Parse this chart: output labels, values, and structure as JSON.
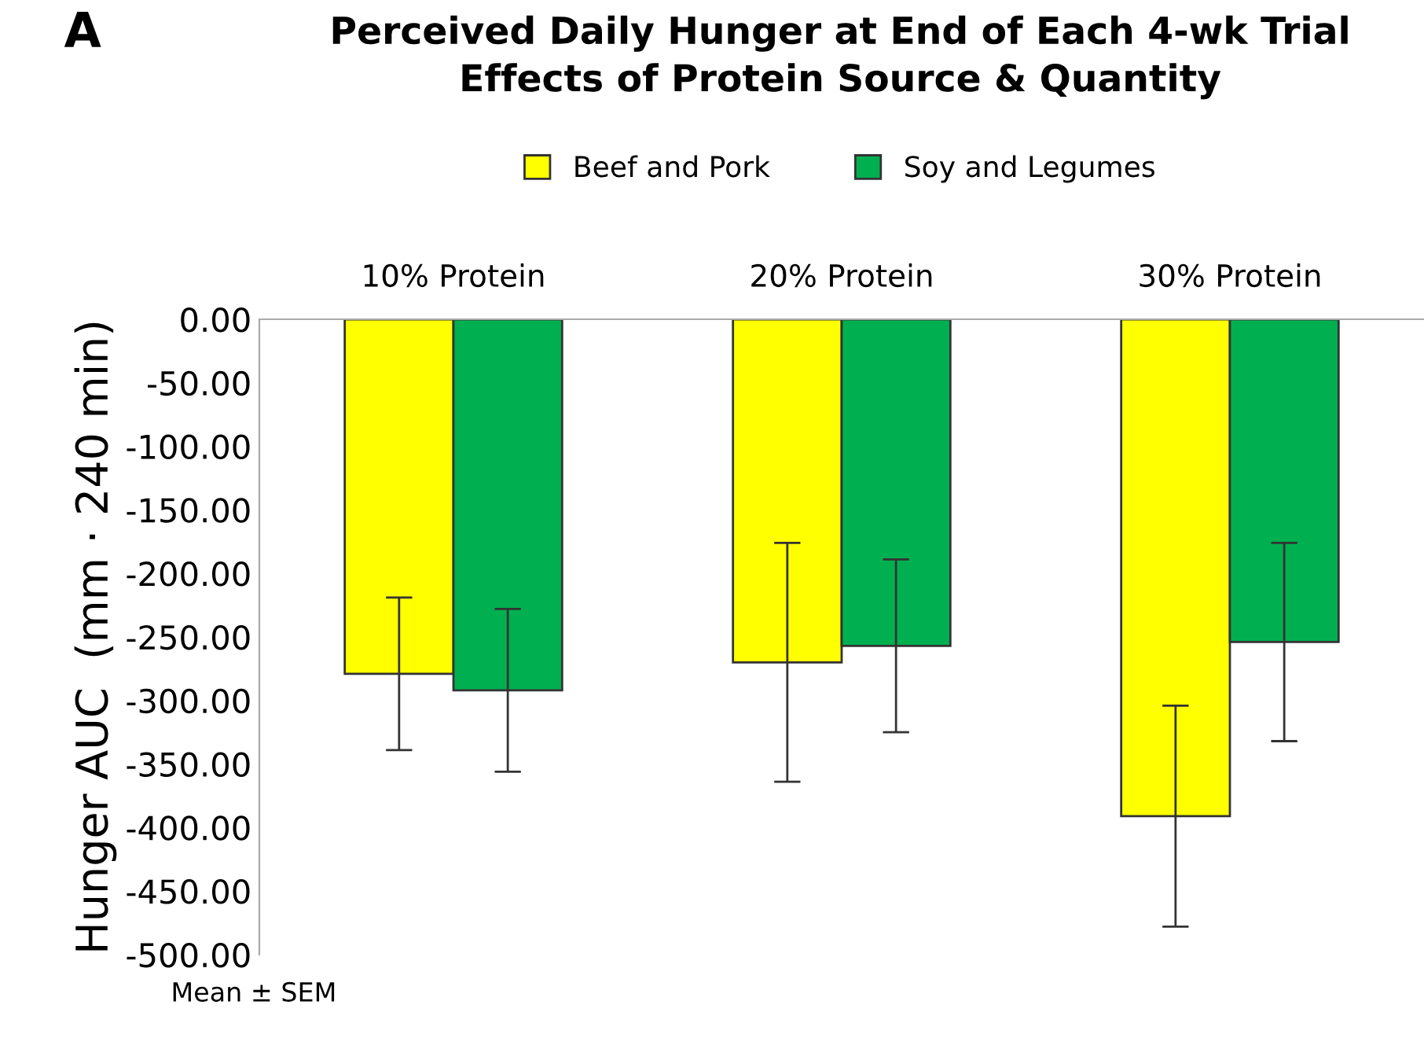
{
  "chart_data": {
    "type": "bar",
    "title": "Perceived Daily Hunger at End of Each 4-wk Trial\nEffects of Protein Source & Quantity",
    "ylabel": "Hunger AUC  (mm · 240 min)",
    "categories": [
      "10% Protein",
      "20% Protein",
      "30% Protein"
    ],
    "series": [
      {
        "name": "Beef and Pork",
        "color": "#ffff00",
        "values": [
          -279,
          -270,
          -391
        ],
        "errors": [
          60,
          94,
          87
        ]
      },
      {
        "name": "Soy and Legumes",
        "color": "#00b050",
        "values": [
          -292,
          -257,
          -254
        ],
        "errors": [
          64,
          68,
          78
        ]
      }
    ],
    "ylim": [
      -500,
      0
    ],
    "yticks": [
      {
        "value": 0,
        "label": "0.00"
      },
      {
        "value": -50,
        "label": "-50.00"
      },
      {
        "value": -100,
        "label": "-100.00"
      },
      {
        "value": -150,
        "label": "-150.00"
      },
      {
        "value": -200,
        "label": "-200.00"
      },
      {
        "value": -250,
        "label": "-250.00"
      },
      {
        "value": -300,
        "label": "-300.00"
      },
      {
        "value": -350,
        "label": "-350.00"
      },
      {
        "value": -400,
        "label": "-400.00"
      },
      {
        "value": -450,
        "label": "-450.00"
      },
      {
        "value": -500,
        "label": "-500.00"
      }
    ],
    "grid": false,
    "legend": "top",
    "annotations": [
      "A",
      "Mean ± SEM"
    ]
  }
}
